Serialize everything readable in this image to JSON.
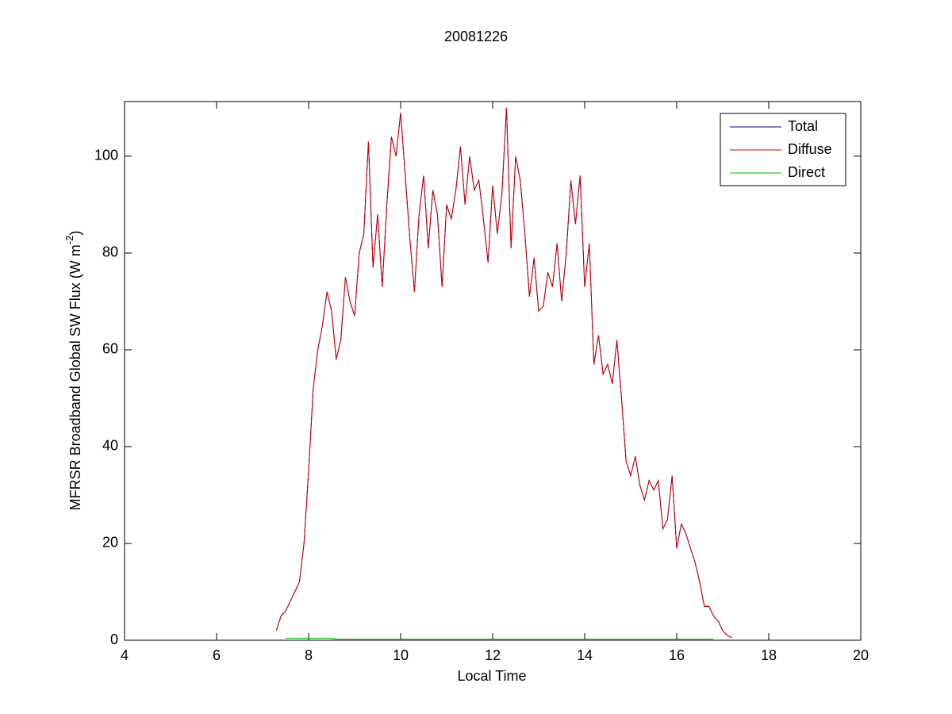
{
  "chart_data": {
    "type": "line",
    "title": "20081226",
    "xlabel": "Local Time",
    "ylabel": {
      "main": "MFRSR Broadband Global SW Flux (W m",
      "sup": "-2",
      "close": ")"
    },
    "xlim": [
      4,
      20
    ],
    "xticks": [
      4,
      6,
      8,
      10,
      12,
      14,
      16,
      18,
      20
    ],
    "ylim": [
      0,
      111.3
    ],
    "yticks": [
      0,
      20,
      40,
      60,
      80,
      100
    ],
    "legend": "upper right",
    "x": [
      7.3,
      7.4,
      7.5,
      7.6,
      7.7,
      7.8,
      7.9,
      8.0,
      8.1,
      8.2,
      8.3,
      8.4,
      8.5,
      8.6,
      8.7,
      8.8,
      8.9,
      9.0,
      9.1,
      9.2,
      9.3,
      9.4,
      9.5,
      9.6,
      9.7,
      9.8,
      9.9,
      10.0,
      10.1,
      10.2,
      10.3,
      10.4,
      10.5,
      10.6,
      10.7,
      10.8,
      10.9,
      11.0,
      11.1,
      11.2,
      11.3,
      11.4,
      11.5,
      11.6,
      11.7,
      11.8,
      11.9,
      12.0,
      12.1,
      12.2,
      12.3,
      12.4,
      12.5,
      12.6,
      12.7,
      12.8,
      12.9,
      13.0,
      13.1,
      13.2,
      13.3,
      13.4,
      13.5,
      13.6,
      13.7,
      13.8,
      13.9,
      14.0,
      14.1,
      14.2,
      14.3,
      14.4,
      14.5,
      14.6,
      14.7,
      14.8,
      14.9,
      15.0,
      15.1,
      15.2,
      15.3,
      15.4,
      15.5,
      15.6,
      15.7,
      15.8,
      15.9,
      16.0,
      16.1,
      16.2,
      16.3,
      16.4,
      16.5,
      16.6,
      16.7,
      16.8,
      16.9,
      17.0,
      17.1,
      17.2
    ],
    "series": [
      {
        "name": "Total",
        "color": "#00007f",
        "values": [
          2,
          5,
          6,
          8,
          10,
          12,
          20,
          35,
          52,
          60,
          65,
          72,
          68,
          58,
          62,
          75,
          70,
          67,
          80,
          84,
          103,
          77,
          88,
          73,
          90,
          104,
          100,
          109,
          96,
          83,
          72,
          88,
          96,
          81,
          93,
          88,
          73,
          90,
          87,
          93,
          102,
          90,
          100,
          93,
          95,
          87,
          78,
          94,
          84,
          92,
          110,
          81,
          100,
          95,
          84,
          71,
          79,
          68,
          69,
          76,
          73,
          82,
          70,
          80,
          95,
          86,
          96,
          73,
          82,
          57,
          63,
          55,
          57,
          53,
          62,
          50,
          37,
          34,
          38,
          32,
          29,
          33,
          31,
          33,
          23,
          25,
          34,
          19,
          24,
          22,
          19,
          16,
          12,
          7,
          7,
          5,
          4,
          2,
          1,
          0.5
        ]
      },
      {
        "name": "Diffuse",
        "color": "#cc0000",
        "values": [
          2,
          5,
          6,
          8,
          10,
          12,
          20,
          35,
          52,
          60,
          65,
          72,
          68,
          58,
          62,
          75,
          70,
          67,
          80,
          84,
          103,
          77,
          88,
          73,
          90,
          104,
          100,
          109,
          96,
          83,
          72,
          88,
          96,
          81,
          93,
          88,
          73,
          90,
          87,
          93,
          102,
          90,
          100,
          93,
          95,
          87,
          78,
          94,
          84,
          92,
          110,
          81,
          100,
          95,
          84,
          71,
          79,
          68,
          69,
          76,
          73,
          82,
          70,
          80,
          95,
          86,
          96,
          73,
          82,
          57,
          63,
          55,
          57,
          53,
          62,
          50,
          37,
          34,
          38,
          32,
          29,
          33,
          31,
          33,
          23,
          25,
          34,
          19,
          24,
          22,
          19,
          16,
          12,
          7,
          7,
          5,
          4,
          2,
          1,
          0.5
        ]
      },
      {
        "name": "Direct",
        "color": "#00bb00",
        "values": [
          null,
          null,
          0.4,
          0.4,
          0.4,
          0.4,
          0.4,
          0.4,
          0.4,
          0.4,
          0.4,
          0.4,
          0.4,
          0.2,
          0.2,
          0.2,
          0.2,
          0.2,
          0.2,
          0.2,
          0.2,
          0.2,
          0.2,
          0.2,
          0.2,
          0.2,
          0.2,
          0.2,
          0.2,
          0.2,
          0.2,
          0.2,
          0.2,
          0.2,
          0.2,
          0.2,
          0.2,
          0.2,
          0.2,
          0.2,
          0.2,
          0.2,
          0.2,
          0.2,
          0.2,
          0.2,
          0.2,
          0.2,
          0.2,
          0.2,
          0.2,
          0.2,
          0.2,
          0.2,
          0.2,
          0.2,
          0.2,
          0.2,
          0.2,
          0.2,
          0.2,
          0.2,
          0.2,
          0.2,
          0.2,
          0.2,
          0.2,
          0.2,
          0.2,
          0.2,
          0.2,
          0.2,
          0.2,
          0.2,
          0.2,
          0.2,
          0.2,
          0.2,
          0.2,
          0.2,
          0.2,
          0.2,
          0.2,
          0.2,
          0.2,
          0.2,
          0.2,
          0.2,
          0.2,
          0.2,
          0.2,
          0.2,
          0.2,
          0.2,
          0.2,
          0.2,
          null,
          null,
          null,
          null
        ]
      }
    ]
  }
}
